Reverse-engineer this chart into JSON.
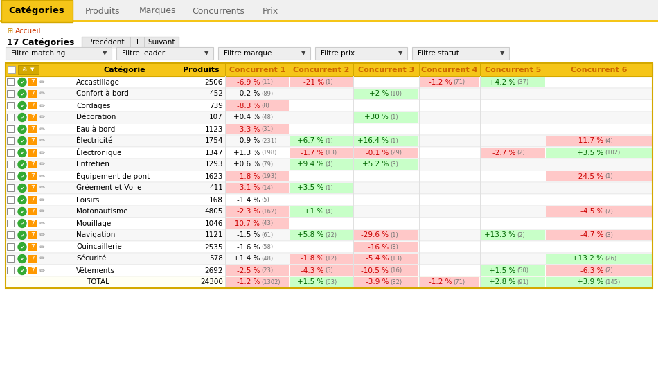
{
  "tab_labels": [
    "Catégories",
    "Produits",
    "Marques",
    "Concurrents",
    "Prix"
  ],
  "active_tab": 0,
  "filters": [
    "Filtre matching",
    "Filtre leader",
    "Filtre marque",
    "Filtre prix",
    "Filtre statut"
  ],
  "col_headers": [
    "Catégorie",
    "Produits",
    "Concurrent 1",
    "Concurrent 2",
    "Concurrent 3",
    "Concurrent 4",
    "Concurrent 5",
    "Concurrent 6"
  ],
  "rows": [
    {
      "name": "Accastillage",
      "produits": "2506",
      "c1": "-6.9 %",
      "c1n": "(11)",
      "c1_color": "red",
      "c2": "-21 %",
      "c2n": "(1)",
      "c2_color": "red",
      "c3": "",
      "c3n": "",
      "c3_color": "",
      "c4": "-1.2 %",
      "c4n": "(71)",
      "c4_color": "red",
      "c5": "+4.2 %",
      "c5n": "(37)",
      "c5_color": "green",
      "c6": "",
      "c6n": "",
      "c6_color": ""
    },
    {
      "name": "Confort à bord",
      "produits": "452",
      "c1": "-0.2 %",
      "c1n": "(89)",
      "c1_color": "",
      "c2": "",
      "c2n": "",
      "c2_color": "",
      "c3": "+2 %",
      "c3n": "(10)",
      "c3_color": "green",
      "c4": "",
      "c4n": "",
      "c4_color": "",
      "c5": "",
      "c5n": "",
      "c5_color": "",
      "c6": "",
      "c6n": "",
      "c6_color": ""
    },
    {
      "name": "Cordages",
      "produits": "739",
      "c1": "-8.3 %",
      "c1n": "(8)",
      "c1_color": "red",
      "c2": "",
      "c2n": "",
      "c2_color": "",
      "c3": "",
      "c3n": "",
      "c3_color": "",
      "c4": "",
      "c4n": "",
      "c4_color": "",
      "c5": "",
      "c5n": "",
      "c5_color": "",
      "c6": "",
      "c6n": "",
      "c6_color": ""
    },
    {
      "name": "Décoration",
      "produits": "107",
      "c1": "+0.4 %",
      "c1n": "(48)",
      "c1_color": "",
      "c2": "",
      "c2n": "",
      "c2_color": "",
      "c3": "+30 %",
      "c3n": "(1)",
      "c3_color": "green",
      "c4": "",
      "c4n": "",
      "c4_color": "",
      "c5": "",
      "c5n": "",
      "c5_color": "",
      "c6": "",
      "c6n": "",
      "c6_color": ""
    },
    {
      "name": "Eau à bord",
      "produits": "1123",
      "c1": "-3.3 %",
      "c1n": "(31)",
      "c1_color": "red",
      "c2": "",
      "c2n": "",
      "c2_color": "",
      "c3": "",
      "c3n": "",
      "c3_color": "",
      "c4": "",
      "c4n": "",
      "c4_color": "",
      "c5": "",
      "c5n": "",
      "c5_color": "",
      "c6": "",
      "c6n": "",
      "c6_color": ""
    },
    {
      "name": "Électricité",
      "produits": "1754",
      "c1": "-0.9 %",
      "c1n": "(231)",
      "c1_color": "",
      "c2": "+6.7 %",
      "c2n": "(1)",
      "c2_color": "green",
      "c3": "+16.4 %",
      "c3n": "(1)",
      "c3_color": "green",
      "c4": "",
      "c4n": "",
      "c4_color": "",
      "c5": "",
      "c5n": "",
      "c5_color": "",
      "c6": "-11.7 %",
      "c6n": "(4)",
      "c6_color": "red"
    },
    {
      "name": "Électronique",
      "produits": "1347",
      "c1": "+1.3 %",
      "c1n": "(198)",
      "c1_color": "",
      "c2": "-1.7 %",
      "c2n": "(13)",
      "c2_color": "red",
      "c3": "-0.1 %",
      "c3n": "(29)",
      "c3_color": "red",
      "c4": "",
      "c4n": "",
      "c4_color": "",
      "c5": "-2.7 %",
      "c5n": "(2)",
      "c5_color": "red",
      "c6": "+3.5 %",
      "c6n": "(102)",
      "c6_color": "green"
    },
    {
      "name": "Entretien",
      "produits": "1293",
      "c1": "+0.6 %",
      "c1n": "(79)",
      "c1_color": "",
      "c2": "+9.4 %",
      "c2n": "(4)",
      "c2_color": "green",
      "c3": "+5.2 %",
      "c3n": "(3)",
      "c3_color": "green",
      "c4": "",
      "c4n": "",
      "c4_color": "",
      "c5": "",
      "c5n": "",
      "c5_color": "",
      "c6": "",
      "c6n": "",
      "c6_color": ""
    },
    {
      "name": "Équipement de pont",
      "produits": "1623",
      "c1": "-1.8 %",
      "c1n": "(193)",
      "c1_color": "red",
      "c2": "",
      "c2n": "",
      "c2_color": "",
      "c3": "",
      "c3n": "",
      "c3_color": "",
      "c4": "",
      "c4n": "",
      "c4_color": "",
      "c5": "",
      "c5n": "",
      "c5_color": "",
      "c6": "-24.5 %",
      "c6n": "(1)",
      "c6_color": "red"
    },
    {
      "name": "Gréement et Voile",
      "produits": "411",
      "c1": "-3.1 %",
      "c1n": "(14)",
      "c1_color": "red",
      "c2": "+3.5 %",
      "c2n": "(1)",
      "c2_color": "green",
      "c3": "",
      "c3n": "",
      "c3_color": "",
      "c4": "",
      "c4n": "",
      "c4_color": "",
      "c5": "",
      "c5n": "",
      "c5_color": "",
      "c6": "",
      "c6n": "",
      "c6_color": ""
    },
    {
      "name": "Loisirs",
      "produits": "168",
      "c1": "-1.4 %",
      "c1n": "(5)",
      "c1_color": "",
      "c2": "",
      "c2n": "",
      "c2_color": "",
      "c3": "",
      "c3n": "",
      "c3_color": "",
      "c4": "",
      "c4n": "",
      "c4_color": "",
      "c5": "",
      "c5n": "",
      "c5_color": "",
      "c6": "",
      "c6n": "",
      "c6_color": ""
    },
    {
      "name": "Motonautisme",
      "produits": "4805",
      "c1": "-2.3 %",
      "c1n": "(162)",
      "c1_color": "red",
      "c2": "+1 %",
      "c2n": "(4)",
      "c2_color": "green",
      "c3": "",
      "c3n": "",
      "c3_color": "",
      "c4": "",
      "c4n": "",
      "c4_color": "",
      "c5": "",
      "c5n": "",
      "c5_color": "",
      "c6": "-4.5 %",
      "c6n": "(7)",
      "c6_color": "red"
    },
    {
      "name": "Mouillage",
      "produits": "1046",
      "c1": "-10.7 %",
      "c1n": "(43)",
      "c1_color": "red",
      "c2": "",
      "c2n": "",
      "c2_color": "",
      "c3": "",
      "c3n": "",
      "c3_color": "",
      "c4": "",
      "c4n": "",
      "c4_color": "",
      "c5": "",
      "c5n": "",
      "c5_color": "",
      "c6": "",
      "c6n": "",
      "c6_color": ""
    },
    {
      "name": "Navigation",
      "produits": "1121",
      "c1": "-1.5 %",
      "c1n": "(61)",
      "c1_color": "",
      "c2": "+5.8 %",
      "c2n": "(22)",
      "c2_color": "green",
      "c3": "-29.6 %",
      "c3n": "(1)",
      "c3_color": "red",
      "c4": "",
      "c4n": "",
      "c4_color": "",
      "c5": "+13.3 %",
      "c5n": "(2)",
      "c5_color": "green",
      "c6": "-4.7 %",
      "c6n": "(3)",
      "c6_color": "red"
    },
    {
      "name": "Quincaillerie",
      "produits": "2535",
      "c1": "-1.6 %",
      "c1n": "(58)",
      "c1_color": "",
      "c2": "",
      "c2n": "",
      "c2_color": "",
      "c3": "-16 %",
      "c3n": "(8)",
      "c3_color": "red",
      "c4": "",
      "c4n": "",
      "c4_color": "",
      "c5": "",
      "c5n": "",
      "c5_color": "",
      "c6": "",
      "c6n": "",
      "c6_color": ""
    },
    {
      "name": "Sécurité",
      "produits": "578",
      "c1": "+1.4 %",
      "c1n": "(48)",
      "c1_color": "",
      "c2": "-1.8 %",
      "c2n": "(12)",
      "c2_color": "red",
      "c3": "-5.4 %",
      "c3n": "(13)",
      "c3_color": "red",
      "c4": "",
      "c4n": "",
      "c4_color": "",
      "c5": "",
      "c5n": "",
      "c5_color": "",
      "c6": "+13.2 %",
      "c6n": "(26)",
      "c6_color": "green"
    },
    {
      "name": "Vêtements",
      "produits": "2692",
      "c1": "-2.5 %",
      "c1n": "(23)",
      "c1_color": "red",
      "c2": "-4.3 %",
      "c2n": "(5)",
      "c2_color": "red",
      "c3": "-10.5 %",
      "c3n": "(16)",
      "c3_color": "red",
      "c4": "",
      "c4n": "",
      "c4_color": "",
      "c5": "+1.5 %",
      "c5n": "(50)",
      "c5_color": "green",
      "c6": "-6.3 %",
      "c6n": "(2)",
      "c6_color": "red"
    }
  ],
  "total_row": {
    "produits": "24300",
    "c1": "-1.2 %",
    "c1n": "(1302)",
    "c1_color": "red",
    "c2": "+1.5 %",
    "c2n": "(63)",
    "c2_color": "green",
    "c3": "-3.9 %",
    "c3n": "(82)",
    "c3_color": "red",
    "c4": "-1.2 %",
    "c4n": "(71)",
    "c4_color": "red",
    "c5": "+2.8 %",
    "c5n": "(91)",
    "c5_color": "green",
    "c6": "+3.9 %",
    "c6n": "(145)",
    "c6_color": "green"
  },
  "yellow": "#f5c518",
  "yellow_dark": "#d4a800",
  "red_cell": "#ffc8c8",
  "green_cell": "#c8ffc8",
  "red_text": "#cc0000",
  "green_text": "#006600",
  "gray_text": "#777777",
  "white": "#ffffff",
  "light_gray": "#f0f0f0",
  "border_gray": "#cccccc",
  "tab_text_inactive": "#666666"
}
